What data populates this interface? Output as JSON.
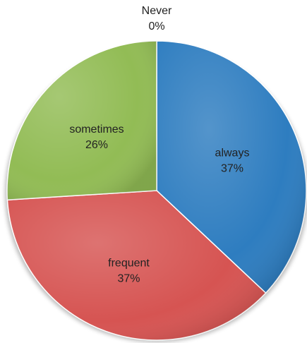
{
  "chart_data": {
    "type": "pie",
    "title": "",
    "categories": [
      "always",
      "frequent",
      "sometimes",
      "Never"
    ],
    "values": [
      37,
      37,
      26,
      0
    ],
    "labels": [
      "37%",
      "37%",
      "26%",
      "0%"
    ],
    "colors": [
      "#2e7dc0",
      "#d65452",
      "#92bc55",
      "#7e60a0"
    ],
    "start_angle_deg": 0,
    "direction": "clockwise",
    "legend": "none",
    "style": "3d-shaded"
  }
}
